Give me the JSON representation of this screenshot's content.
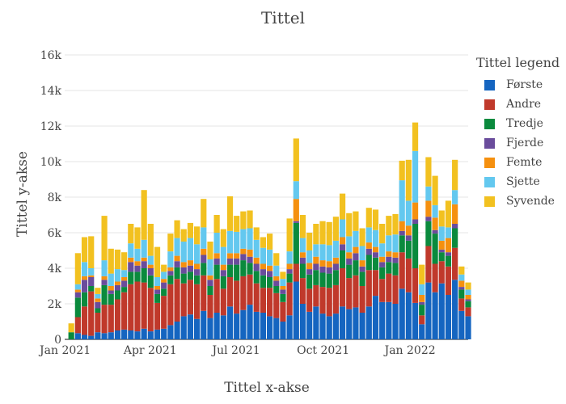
{
  "chart_data": {
    "type": "bar",
    "stacked": true,
    "title": "Tittel",
    "xlabel": "Tittel x-akse",
    "ylabel": "Tittel y-akse",
    "legend_title": "Tittel legend",
    "legend_position": "right",
    "grid": true,
    "ylim": [
      0,
      16000
    ],
    "y_ticks": [
      0,
      2000,
      4000,
      6000,
      8000,
      10000,
      12000,
      14000,
      16000
    ],
    "y_tick_labels": [
      "0",
      "2k",
      "4k",
      "6k",
      "8k",
      "10k",
      "12k",
      "14k",
      "16k"
    ],
    "x_tick_labels": [
      "Jan 2021",
      "Apr 2021",
      "Jul 2021",
      "Oct 2021",
      "Jan 2022"
    ],
    "x_tick_dates": [
      "2021-01-01",
      "2021-04-01",
      "2021-07-01",
      "2021-10-01",
      "2022-01-01"
    ],
    "x": [
      "2021-01-04",
      "2021-01-11",
      "2021-01-18",
      "2021-01-25",
      "2021-02-01",
      "2021-02-08",
      "2021-02-15",
      "2021-02-22",
      "2021-03-01",
      "2021-03-08",
      "2021-03-15",
      "2021-03-22",
      "2021-03-29",
      "2021-04-05",
      "2021-04-12",
      "2021-04-19",
      "2021-04-26",
      "2021-05-03",
      "2021-05-10",
      "2021-05-17",
      "2021-05-24",
      "2021-05-31",
      "2021-06-07",
      "2021-06-14",
      "2021-06-21",
      "2021-06-28",
      "2021-07-05",
      "2021-07-12",
      "2021-07-19",
      "2021-07-26",
      "2021-08-02",
      "2021-08-09",
      "2021-08-16",
      "2021-08-23",
      "2021-08-30",
      "2021-09-06",
      "2021-09-13",
      "2021-09-20",
      "2021-09-27",
      "2021-10-04",
      "2021-10-11",
      "2021-10-18",
      "2021-10-25",
      "2021-11-01",
      "2021-11-08",
      "2021-11-15",
      "2021-11-22",
      "2021-11-29",
      "2021-12-06",
      "2021-12-13",
      "2021-12-20",
      "2021-12-27",
      "2022-01-03",
      "2022-01-10",
      "2022-01-17",
      "2022-01-24",
      "2022-01-31",
      "2022-02-07",
      "2022-02-14",
      "2022-02-21",
      "2022-02-28"
    ],
    "series": [
      {
        "name": "Første",
        "color": "#1565c0",
        "values": [
          0,
          350,
          250,
          200,
          400,
          350,
          400,
          500,
          550,
          500,
          450,
          600,
          450,
          550,
          600,
          800,
          1000,
          1300,
          1400,
          1150,
          1600,
          1200,
          1500,
          1350,
          1850,
          1450,
          1650,
          1950,
          1550,
          1500,
          1300,
          1200,
          1000,
          1350,
          3250,
          2000,
          1550,
          1850,
          1450,
          1300,
          1450,
          1850,
          1700,
          1800,
          1500,
          1850,
          2450,
          2100,
          2100,
          2000,
          2850,
          2650,
          2050,
          850,
          3200,
          2650,
          3150,
          2500,
          3350,
          1600,
          1300
        ]
      },
      {
        "name": "Andre",
        "color": "#c0392b",
        "values": [
          0,
          900,
          1600,
          2500,
          1100,
          1600,
          1550,
          1750,
          2100,
          2600,
          2800,
          2600,
          2450,
          1500,
          1850,
          2300,
          2400,
          1850,
          1950,
          1950,
          2000,
          1300,
          1900,
          1500,
          1650,
          1850,
          1900,
          1700,
          1600,
          1400,
          1600,
          1400,
          1100,
          1850,
          1000,
          1450,
          1300,
          1200,
          1500,
          1600,
          1600,
          2150,
          1750,
          1800,
          1500,
          2050,
          1450,
          1300,
          1600,
          1600,
          2050,
          1900,
          1950,
          500,
          2050,
          1600,
          1250,
          1600,
          1800,
          700,
          500
        ]
      },
      {
        "name": "Tredje",
        "color": "#0a8a3d",
        "values": [
          400,
          1100,
          800,
          300,
          250,
          1100,
          600,
          500,
          300,
          700,
          550,
          800,
          700,
          500,
          400,
          500,
          650,
          550,
          450,
          500,
          700,
          500,
          800,
          700,
          700,
          900,
          900,
          650,
          700,
          700,
          600,
          400,
          450,
          500,
          2300,
          800,
          800,
          850,
          800,
          800,
          850,
          1000,
          750,
          850,
          800,
          850,
          700,
          650,
          650,
          700,
          950,
          1000,
          2500,
          600,
          1400,
          1700,
          500,
          600,
          1100,
          500,
          350
        ]
      },
      {
        "name": "Fjerde",
        "color": "#6a4c9c",
        "values": [
          0,
          300,
          700,
          500,
          350,
          300,
          200,
          300,
          350,
          550,
          350,
          400,
          400,
          250,
          350,
          250,
          350,
          350,
          350,
          350,
          450,
          350,
          350,
          350,
          350,
          350,
          350,
          350,
          400,
          350,
          350,
          300,
          250,
          250,
          100,
          350,
          300,
          350,
          350,
          350,
          350,
          350,
          350,
          400,
          300,
          350,
          300,
          300,
          300,
          300,
          250,
          300,
          250,
          150,
          250,
          200,
          150,
          200,
          250,
          150,
          100
        ]
      },
      {
        "name": "Femte",
        "color": "#f5900f",
        "values": [
          0,
          150,
          200,
          100,
          200,
          200,
          250,
          200,
          200,
          250,
          250,
          200,
          200,
          200,
          200,
          200,
          300,
          300,
          300,
          300,
          350,
          250,
          300,
          300,
          300,
          300,
          300,
          400,
          350,
          300,
          300,
          250,
          200,
          300,
          1250,
          300,
          350,
          400,
          350,
          350,
          350,
          400,
          350,
          350,
          350,
          350,
          300,
          300,
          300,
          300,
          550,
          550,
          950,
          400,
          900,
          700,
          500,
          800,
          1100,
          350,
          250
        ]
      },
      {
        "name": "Sjette",
        "color": "#63c8ef",
        "values": [
          0,
          300,
          800,
          400,
          250,
          900,
          700,
          700,
          400,
          800,
          700,
          1000,
          500,
          500,
          400,
          900,
          1000,
          1150,
          1250,
          1100,
          1200,
          900,
          1150,
          1000,
          1250,
          1200,
          1100,
          1200,
          1000,
          900,
          900,
          600,
          400,
          700,
          1000,
          800,
          700,
          700,
          900,
          900,
          950,
          1000,
          900,
          900,
          800,
          850,
          950,
          750,
          900,
          1000,
          2300,
          1400,
          2900,
          600,
          800,
          700,
          800,
          600,
          800,
          350,
          300
        ]
      },
      {
        "name": "Syvende",
        "color": "#f2c120",
        "values": [
          500,
          1750,
          1400,
          1800,
          350,
          2500,
          1400,
          1100,
          1000,
          1100,
          1200,
          2800,
          1800,
          1700,
          400,
          1000,
          1000,
          700,
          850,
          1000,
          1600,
          1000,
          1000,
          1000,
          1950,
          900,
          1000,
          1000,
          700,
          600,
          900,
          700,
          400,
          1850,
          2400,
          1300,
          1000,
          1150,
          1300,
          1300,
          1350,
          1450,
          1300,
          1100,
          1000,
          1100,
          1150,
          1100,
          1100,
          1150,
          1100,
          2300,
          1600,
          1100,
          1650,
          1650,
          900,
          1500,
          1700,
          450,
          400
        ]
      }
    ]
  }
}
